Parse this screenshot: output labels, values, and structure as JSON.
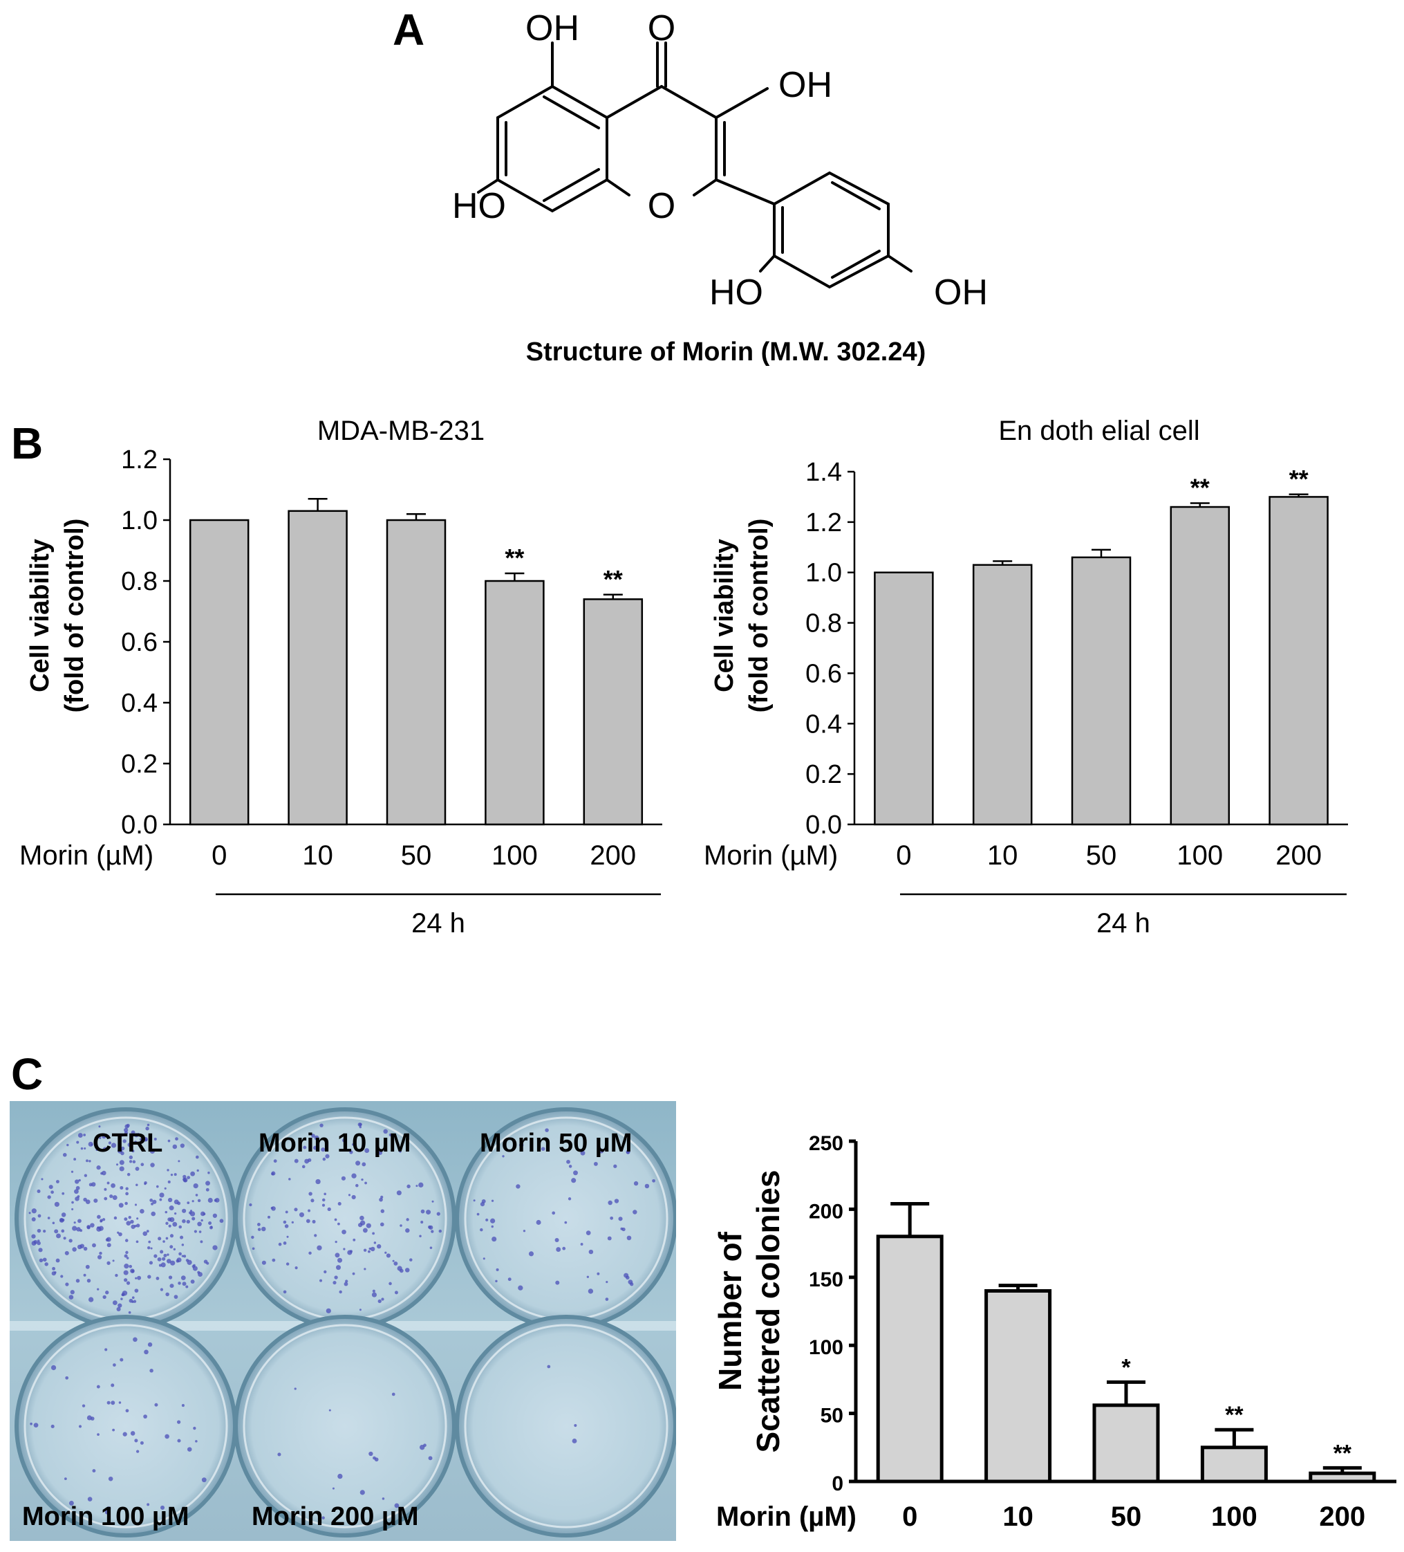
{
  "panels": {
    "a": {
      "letter": "A",
      "structure_labels": [
        "OH",
        "O",
        "OH",
        "HO",
        "O",
        "HO",
        "OH"
      ],
      "caption": "Structure of Morin (M.W. 302.24)"
    },
    "b": {
      "letter": "B"
    },
    "c": {
      "letter": "C",
      "well_labels": [
        "CTRL",
        "Morin 10 µM",
        "Morin 50 µM",
        "Morin 100 µM",
        "Morin 200 µM"
      ]
    }
  },
  "chart_data": [
    {
      "type": "bar",
      "title": "MDA-MB-231",
      "ylabel": "Cell viability\n(fold of control)",
      "xaxis_prefix": "Morin (µM)",
      "group_label": "24 h",
      "categories": [
        "0",
        "10",
        "50",
        "100",
        "200"
      ],
      "values": [
        1.0,
        1.03,
        1.0,
        0.8,
        0.74
      ],
      "errors": [
        0,
        0.04,
        0.02,
        0.025,
        0.015
      ],
      "significance": [
        "",
        "",
        "",
        "**",
        "**"
      ],
      "ylim": [
        0,
        1.2
      ],
      "yticks": [
        "0.0",
        "0.2",
        "0.4",
        "0.6",
        "0.8",
        "1.0",
        "1.2"
      ],
      "bar_color": "#c0c0c0"
    },
    {
      "type": "bar",
      "title": "En doth elial cell",
      "ylabel": "Cell viability\n(fold of control)",
      "xaxis_prefix": "Morin (µM)",
      "group_label": "24 h",
      "categories": [
        "0",
        "10",
        "50",
        "100",
        "200"
      ],
      "values": [
        1.0,
        1.03,
        1.06,
        1.26,
        1.3
      ],
      "errors": [
        0,
        0.015,
        0.03,
        0.015,
        0.01
      ],
      "significance": [
        "",
        "",
        "",
        "**",
        "**"
      ],
      "ylim": [
        0,
        1.4
      ],
      "yticks": [
        "0.0",
        "0.2",
        "0.4",
        "0.6",
        "0.8",
        "1.0",
        "1.2",
        "1.4"
      ],
      "bar_color": "#c0c0c0"
    },
    {
      "type": "bar",
      "title": "",
      "ylabel": "Number of\nScattered colonies",
      "xaxis_prefix": "Morin (µM)",
      "categories": [
        "0",
        "10",
        "50",
        "100",
        "200"
      ],
      "values": [
        180,
        140,
        56,
        25,
        6
      ],
      "errors": [
        24,
        4,
        17,
        13,
        4
      ],
      "significance": [
        "",
        "",
        "*",
        "**",
        "**"
      ],
      "ylim": [
        0,
        250
      ],
      "yticks": [
        "0",
        "50",
        "100",
        "150",
        "200",
        "250"
      ],
      "bar_color": "#d3d3d3"
    }
  ]
}
